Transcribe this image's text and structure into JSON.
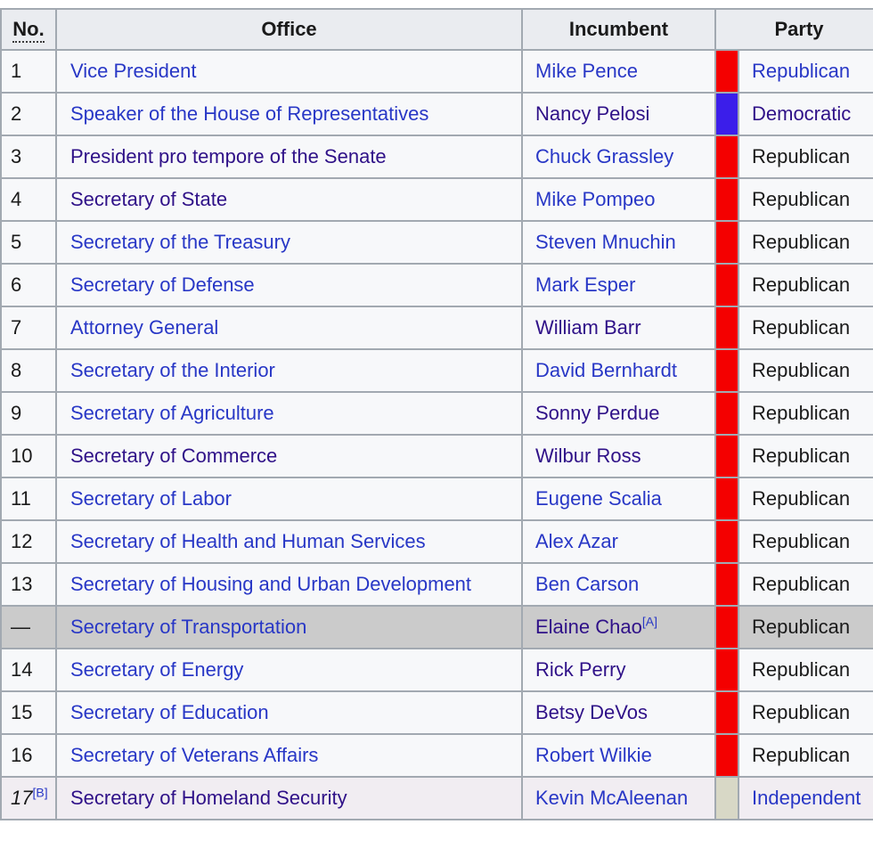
{
  "palette": {
    "border": "#a2a9b1",
    "header_bg": "#eaecf0",
    "row_bg": "#f7f8fa",
    "ineligible_row_bg": "#cbcbcb",
    "acting_row_bg": "#f1edf2",
    "text": "#1a1a1a",
    "link": "#2837c6",
    "visited_link": "#2f1188",
    "republican": "#f40000",
    "democratic": "#3b1eea",
    "independent": "#d8d8c6"
  },
  "table": {
    "headers": {
      "no": "No.",
      "office": "Office",
      "incumbent": "Incumbent",
      "party": "Party"
    },
    "rows": [
      {
        "no": "1",
        "office": "Vice President",
        "office_visited": false,
        "incumbent": "Mike Pence",
        "incumbent_visited": false,
        "party": "Republican",
        "party_color": "republican",
        "party_is_link": true,
        "party_visited": false,
        "row_style": "normal"
      },
      {
        "no": "2",
        "office": "Speaker of the House of Representatives",
        "office_visited": false,
        "incumbent": "Nancy Pelosi",
        "incumbent_visited": true,
        "party": "Democratic",
        "party_color": "democratic",
        "party_is_link": true,
        "party_visited": true,
        "row_style": "normal"
      },
      {
        "no": "3",
        "office": "President pro tempore of the Senate",
        "office_visited": true,
        "incumbent": "Chuck Grassley",
        "incumbent_visited": false,
        "party": "Republican",
        "party_color": "republican",
        "party_is_link": false,
        "party_visited": false,
        "row_style": "normal"
      },
      {
        "no": "4",
        "office": "Secretary of State",
        "office_visited": true,
        "incumbent": "Mike Pompeo",
        "incumbent_visited": false,
        "party": "Republican",
        "party_color": "republican",
        "party_is_link": false,
        "party_visited": false,
        "row_style": "normal"
      },
      {
        "no": "5",
        "office": "Secretary of the Treasury",
        "office_visited": false,
        "incumbent": "Steven Mnuchin",
        "incumbent_visited": false,
        "party": "Republican",
        "party_color": "republican",
        "party_is_link": false,
        "party_visited": false,
        "row_style": "normal"
      },
      {
        "no": "6",
        "office": "Secretary of Defense",
        "office_visited": false,
        "incumbent": "Mark Esper",
        "incumbent_visited": false,
        "party": "Republican",
        "party_color": "republican",
        "party_is_link": false,
        "party_visited": false,
        "row_style": "normal"
      },
      {
        "no": "7",
        "office": "Attorney General",
        "office_visited": false,
        "incumbent": "William Barr",
        "incumbent_visited": true,
        "party": "Republican",
        "party_color": "republican",
        "party_is_link": false,
        "party_visited": false,
        "row_style": "normal"
      },
      {
        "no": "8",
        "office": "Secretary of the Interior",
        "office_visited": false,
        "incumbent": "David Bernhardt",
        "incumbent_visited": false,
        "party": "Republican",
        "party_color": "republican",
        "party_is_link": false,
        "party_visited": false,
        "row_style": "normal"
      },
      {
        "no": "9",
        "office": "Secretary of Agriculture",
        "office_visited": false,
        "incumbent": "Sonny Perdue",
        "incumbent_visited": true,
        "party": "Republican",
        "party_color": "republican",
        "party_is_link": false,
        "party_visited": false,
        "row_style": "normal"
      },
      {
        "no": "10",
        "office": "Secretary of Commerce",
        "office_visited": true,
        "incumbent": "Wilbur Ross",
        "incumbent_visited": true,
        "party": "Republican",
        "party_color": "republican",
        "party_is_link": false,
        "party_visited": false,
        "row_style": "normal"
      },
      {
        "no": "11",
        "office": "Secretary of Labor",
        "office_visited": false,
        "incumbent": "Eugene Scalia",
        "incumbent_visited": false,
        "party": "Republican",
        "party_color": "republican",
        "party_is_link": false,
        "party_visited": false,
        "row_style": "normal"
      },
      {
        "no": "12",
        "office": "Secretary of Health and Human Services",
        "office_visited": false,
        "incumbent": "Alex Azar",
        "incumbent_visited": false,
        "party": "Republican",
        "party_color": "republican",
        "party_is_link": false,
        "party_visited": false,
        "row_style": "normal"
      },
      {
        "no": "13",
        "office": "Secretary of Housing and Urban Development",
        "office_visited": false,
        "incumbent": "Ben Carson",
        "incumbent_visited": false,
        "party": "Republican",
        "party_color": "republican",
        "party_is_link": false,
        "party_visited": false,
        "row_style": "normal"
      },
      {
        "no": "—",
        "office": "Secretary of Transportation",
        "office_visited": false,
        "incumbent": "Elaine Chao",
        "incumbent_visited": true,
        "incumbent_sup": "[A]",
        "party": "Republican",
        "party_color": "republican",
        "party_is_link": false,
        "party_visited": false,
        "row_style": "ineligible"
      },
      {
        "no": "14",
        "office": "Secretary of Energy",
        "office_visited": false,
        "incumbent": "Rick Perry",
        "incumbent_visited": true,
        "party": "Republican",
        "party_color": "republican",
        "party_is_link": false,
        "party_visited": false,
        "row_style": "normal"
      },
      {
        "no": "15",
        "office": "Secretary of Education",
        "office_visited": false,
        "incumbent": "Betsy DeVos",
        "incumbent_visited": true,
        "party": "Republican",
        "party_color": "republican",
        "party_is_link": false,
        "party_visited": false,
        "row_style": "normal"
      },
      {
        "no": "16",
        "office": "Secretary of Veterans Affairs",
        "office_visited": false,
        "incumbent": "Robert Wilkie",
        "incumbent_visited": false,
        "party": "Republican",
        "party_color": "republican",
        "party_is_link": false,
        "party_visited": false,
        "row_style": "normal"
      },
      {
        "no": "17",
        "no_italic": true,
        "no_sup": "[B]",
        "office": "Secretary of Homeland Security",
        "office_visited": true,
        "incumbent": "Kevin McAleenan",
        "incumbent_visited": false,
        "party": "Independent",
        "party_color": "independent",
        "party_is_link": true,
        "party_visited": false,
        "row_style": "acting"
      }
    ]
  }
}
